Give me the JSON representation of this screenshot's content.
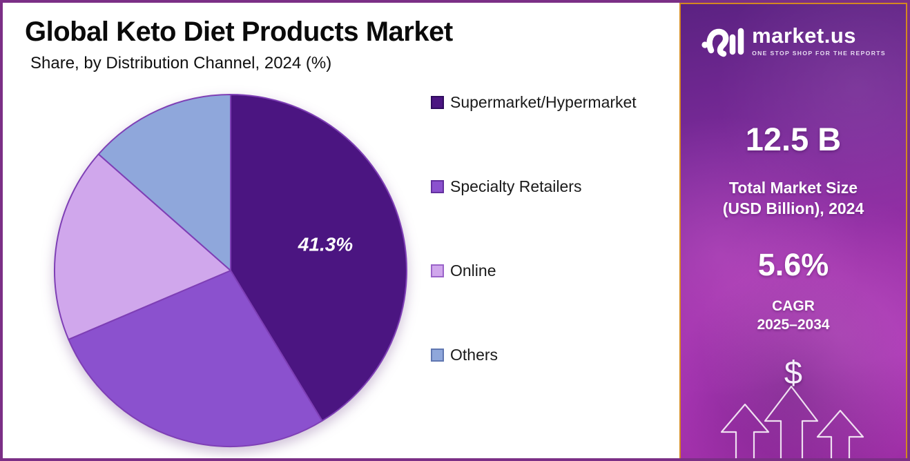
{
  "chart_data": {
    "type": "pie",
    "title": "Global Keto Diet Products Market",
    "subtitle": "Share, by Distribution Channel, 2024 (%)",
    "unit": "%",
    "start_angle_deg": 0,
    "direction": "clockwise",
    "legend_position": "right",
    "slices": [
      {
        "name": "Supermarket/Hypermarket",
        "value": 41.3,
        "label": "41.3%",
        "color": "#4b1581",
        "border": "#2f0b5e"
      },
      {
        "name": "Specialty Retailers",
        "value": 27.3,
        "label": "",
        "color": "#8b51ce",
        "border": "#63309f"
      },
      {
        "name": "Online",
        "value": 17.9,
        "label": "",
        "color": "#d0a7ec",
        "border": "#9a63c9"
      },
      {
        "name": "Others",
        "value": 13.5,
        "label": "",
        "color": "#8fa7db",
        "border": "#6077b1"
      }
    ]
  },
  "sidebar": {
    "logo_text": "market.us",
    "logo_tagline": "ONE STOP SHOP FOR THE REPORTS",
    "market_size_value": "12.5 B",
    "market_size_label_line1": "Total Market Size",
    "market_size_label_line2": "(USD Billion), 2024",
    "cagr_value": "5.6%",
    "cagr_label_line1": "CAGR",
    "cagr_label_line2": "2025–2034",
    "currency_symbol": "$"
  },
  "colors": {
    "frame_border": "#7b2f86",
    "sidebar_border": "#d4881f",
    "sidebar_gradient_top": "#5b2282",
    "sidebar_gradient_mid": "#9a2fa8",
    "sidebar_gradient_bottom": "#a835b3",
    "title_text": "#0a0a0a",
    "legend_text": "#1a1a1a",
    "sidebar_text": "#ffffff",
    "pie_stroke": "#7e3fb5",
    "slice_label_text": "#ffffff"
  }
}
